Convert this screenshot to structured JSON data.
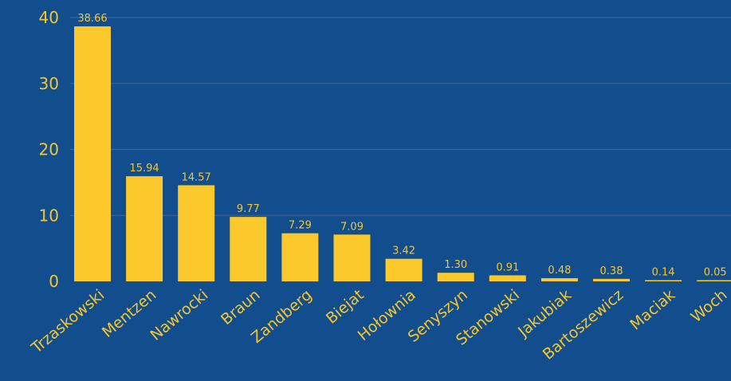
{
  "chart_data": {
    "type": "bar",
    "categories": [
      "Trzaskowski",
      "Mentzen",
      "Nawrocki",
      "Braun",
      "Zandberg",
      "Biejat",
      "Hołownia",
      "Senyszyn",
      "Stanowski",
      "Jakubiak",
      "Bartoszewicz",
      "Maciak",
      "Woch"
    ],
    "values": [
      38.66,
      15.94,
      14.57,
      9.77,
      7.29,
      7.09,
      3.42,
      1.3,
      0.91,
      0.48,
      0.38,
      0.14,
      0.05
    ],
    "value_labels": [
      "38.66",
      "15.94",
      "14.57",
      "9.77",
      "7.29",
      "7.09",
      "3.42",
      "1.30",
      "0.91",
      "0.48",
      "0.38",
      "0.14",
      "0.05"
    ],
    "yticks": [
      0,
      10,
      20,
      30,
      40
    ],
    "ylim": [
      0,
      40
    ],
    "grid": true,
    "colors": {
      "background": "#124e8e",
      "bar": "#fbc92b",
      "text": "#f7c62f",
      "grid": "#3a6aa0"
    }
  }
}
